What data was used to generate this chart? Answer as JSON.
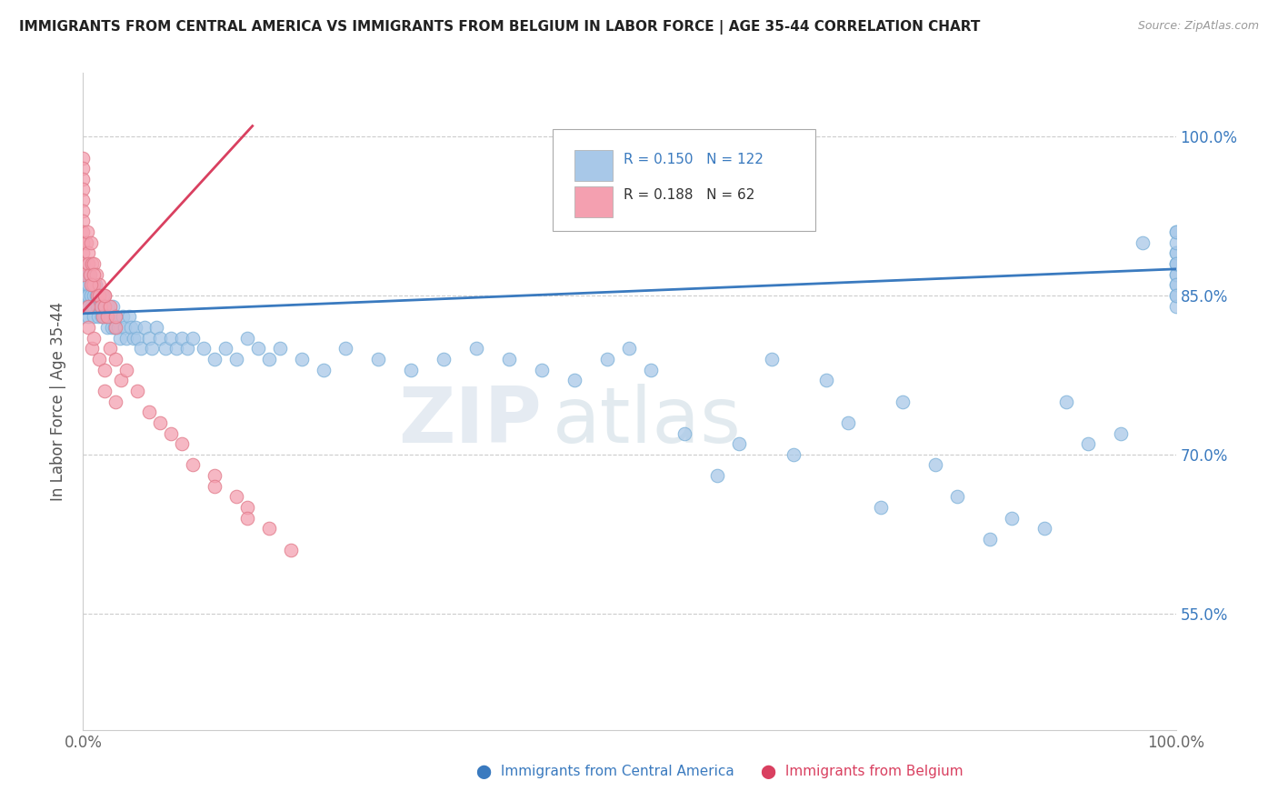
{
  "title": "IMMIGRANTS FROM CENTRAL AMERICA VS IMMIGRANTS FROM BELGIUM IN LABOR FORCE | AGE 35-44 CORRELATION CHART",
  "source": "Source: ZipAtlas.com",
  "ylabel": "In Labor Force | Age 35-44",
  "ytick_labels": [
    "55.0%",
    "70.0%",
    "85.0%",
    "100.0%"
  ],
  "ytick_values": [
    0.55,
    0.7,
    0.85,
    1.0
  ],
  "xlim": [
    0.0,
    1.0
  ],
  "ylim": [
    0.44,
    1.06
  ],
  "legend_blue_r": "0.150",
  "legend_blue_n": "122",
  "legend_pink_r": "0.188",
  "legend_pink_n": "62",
  "blue_color": "#a8c8e8",
  "pink_color": "#f4a0b0",
  "blue_line_color": "#3a7abf",
  "pink_line_color": "#d94060",
  "watermark_zip": "ZIP",
  "watermark_atlas": "atlas",
  "blue_line_x": [
    0.0,
    1.0
  ],
  "blue_line_y": [
    0.833,
    0.875
  ],
  "pink_line_x": [
    0.0,
    0.155
  ],
  "pink_line_y": [
    0.835,
    1.01
  ],
  "blue_x": [
    0.0,
    0.0,
    0.0,
    0.0,
    0.0,
    0.0,
    0.0,
    0.0,
    0.0,
    0.0,
    0.0,
    0.0,
    0.002,
    0.003,
    0.004,
    0.005,
    0.005,
    0.005,
    0.005,
    0.006,
    0.007,
    0.008,
    0.009,
    0.01,
    0.01,
    0.01,
    0.011,
    0.012,
    0.013,
    0.014,
    0.015,
    0.015,
    0.016,
    0.017,
    0.018,
    0.019,
    0.02,
    0.02,
    0.021,
    0.022,
    0.023,
    0.025,
    0.026,
    0.027,
    0.029,
    0.03,
    0.032,
    0.034,
    0.036,
    0.038,
    0.04,
    0.042,
    0.044,
    0.046,
    0.048,
    0.05,
    0.053,
    0.056,
    0.06,
    0.063,
    0.067,
    0.07,
    0.075,
    0.08,
    0.085,
    0.09,
    0.095,
    0.1,
    0.11,
    0.12,
    0.13,
    0.14,
    0.15,
    0.16,
    0.17,
    0.18,
    0.2,
    0.22,
    0.24,
    0.27,
    0.3,
    0.33,
    0.36,
    0.39,
    0.42,
    0.45,
    0.48,
    0.5,
    0.52,
    0.55,
    0.58,
    0.6,
    0.63,
    0.65,
    0.68,
    0.7,
    0.73,
    0.75,
    0.78,
    0.8,
    0.83,
    0.85,
    0.88,
    0.9,
    0.92,
    0.95,
    0.97,
    1.0,
    1.0,
    1.0,
    1.0,
    1.0,
    1.0,
    1.0,
    1.0,
    1.0,
    1.0,
    1.0,
    1.0,
    1.0,
    1.0,
    1.0
  ],
  "blue_y": [
    0.87,
    0.86,
    0.88,
    0.85,
    0.84,
    0.86,
    0.85,
    0.84,
    0.83,
    0.88,
    0.87,
    0.86,
    0.86,
    0.85,
    0.87,
    0.86,
    0.85,
    0.84,
    0.83,
    0.87,
    0.85,
    0.84,
    0.86,
    0.85,
    0.84,
    0.83,
    0.86,
    0.85,
    0.84,
    0.83,
    0.85,
    0.84,
    0.84,
    0.83,
    0.85,
    0.84,
    0.83,
    0.84,
    0.83,
    0.82,
    0.84,
    0.83,
    0.82,
    0.84,
    0.82,
    0.83,
    0.82,
    0.81,
    0.83,
    0.82,
    0.81,
    0.83,
    0.82,
    0.81,
    0.82,
    0.81,
    0.8,
    0.82,
    0.81,
    0.8,
    0.82,
    0.81,
    0.8,
    0.81,
    0.8,
    0.81,
    0.8,
    0.81,
    0.8,
    0.79,
    0.8,
    0.79,
    0.81,
    0.8,
    0.79,
    0.8,
    0.79,
    0.78,
    0.8,
    0.79,
    0.78,
    0.79,
    0.8,
    0.79,
    0.78,
    0.77,
    0.79,
    0.8,
    0.78,
    0.72,
    0.68,
    0.71,
    0.79,
    0.7,
    0.77,
    0.73,
    0.65,
    0.75,
    0.69,
    0.66,
    0.62,
    0.64,
    0.63,
    0.75,
    0.71,
    0.72,
    0.9,
    0.87,
    0.86,
    0.88,
    0.89,
    0.91,
    0.87,
    0.85,
    0.88,
    0.86,
    0.89,
    0.84,
    0.9,
    0.85,
    0.91,
    0.88
  ],
  "pink_x": [
    0.0,
    0.0,
    0.0,
    0.0,
    0.0,
    0.0,
    0.0,
    0.0,
    0.0,
    0.0,
    0.0,
    0.0,
    0.003,
    0.004,
    0.005,
    0.005,
    0.006,
    0.007,
    0.008,
    0.009,
    0.01,
    0.01,
    0.012,
    0.013,
    0.015,
    0.015,
    0.016,
    0.018,
    0.02,
    0.02,
    0.022,
    0.025,
    0.03,
    0.005,
    0.007,
    0.01,
    0.02,
    0.03,
    0.005,
    0.008,
    0.01,
    0.015,
    0.02,
    0.025,
    0.03,
    0.035,
    0.04,
    0.05,
    0.06,
    0.07,
    0.08,
    0.09,
    0.1,
    0.12,
    0.12,
    0.14,
    0.15,
    0.15,
    0.17,
    0.19,
    0.02,
    0.03
  ],
  "pink_y": [
    0.98,
    0.97,
    0.96,
    0.95,
    0.94,
    0.93,
    0.92,
    0.91,
    0.9,
    0.89,
    0.88,
    0.87,
    0.9,
    0.91,
    0.89,
    0.88,
    0.87,
    0.9,
    0.88,
    0.86,
    0.88,
    0.86,
    0.87,
    0.85,
    0.86,
    0.85,
    0.84,
    0.83,
    0.85,
    0.84,
    0.83,
    0.84,
    0.82,
    0.84,
    0.86,
    0.87,
    0.85,
    0.83,
    0.82,
    0.8,
    0.81,
    0.79,
    0.78,
    0.8,
    0.79,
    0.77,
    0.78,
    0.76,
    0.74,
    0.73,
    0.72,
    0.71,
    0.69,
    0.68,
    0.67,
    0.66,
    0.65,
    0.64,
    0.63,
    0.61,
    0.76,
    0.75
  ]
}
